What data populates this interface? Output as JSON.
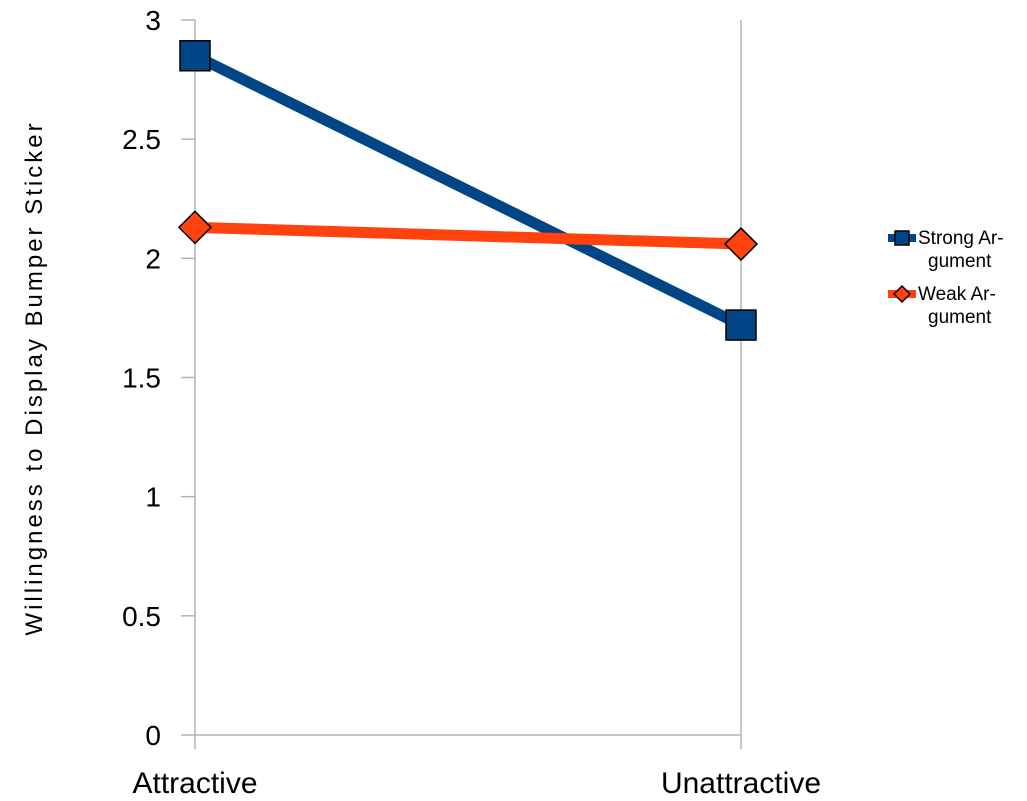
{
  "chart_data": {
    "type": "line",
    "categories": [
      "Attractive",
      "Unattractive"
    ],
    "series": [
      {
        "name_lines": [
          "Strong Ar-",
          "gument"
        ],
        "values": [
          2.85,
          1.72
        ],
        "color": "#004586",
        "marker": "square"
      },
      {
        "name_lines": [
          "Weak Ar-",
          "gument"
        ],
        "values": [
          2.13,
          2.06
        ],
        "color": "#ff420e",
        "marker": "diamond"
      }
    ],
    "ylabel": "Willingness to Display Bumper Sticker",
    "yticks": [
      "0",
      "0.5",
      "1",
      "1.5",
      "2",
      "2.5",
      "3"
    ],
    "ylim": [
      0,
      3
    ],
    "grid": "vertical",
    "legend": "right"
  }
}
